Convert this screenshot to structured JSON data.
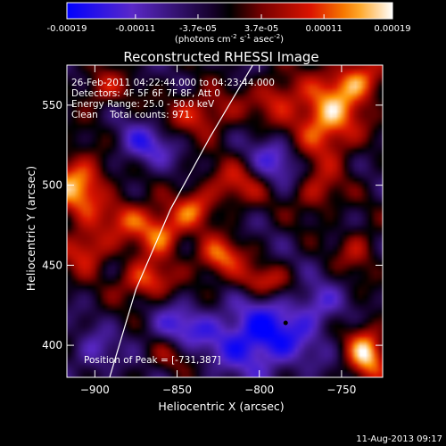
{
  "colorbar": {
    "ticks": [
      "-0.00019",
      "-0.00011",
      "-3.7e-05",
      "3.7e-05",
      "0.00011",
      "0.00019"
    ],
    "unit_prefix": "(photons cm",
    "unit_exp1": "-2",
    "unit_mid": " s",
    "unit_exp2": "-1",
    "unit_mid2": " asec",
    "unit_exp3": "-2",
    "unit_suffix": ")"
  },
  "annotations": {
    "line1": "26-Feb-2011 04:22:44.000 to 04:23:44.000",
    "line2": "Detectors: 4F 5F 6F 7F 8F, Att 0",
    "line3": "Energy Range: 25.0 - 50.0 keV",
    "line4": "Clean    Total counts: 971.",
    "peak": "Position of Peak = [-731,387]"
  },
  "footer": {
    "date": "11-Aug-2013 09:17"
  },
  "chart_data": {
    "type": "heatmap",
    "title": "Reconstructed RHESSI Image",
    "xlabel": "Heliocentric X (arcsec)",
    "ylabel": "Heliocentric Y (arcsec)",
    "xlim": [
      -917,
      -725
    ],
    "ylim": [
      380,
      575
    ],
    "xticks": [
      -900,
      -850,
      -800,
      -750
    ],
    "yticks": [
      400,
      450,
      500,
      550
    ],
    "xtick_labels": [
      "−900",
      "−850",
      "−800",
      "−750"
    ],
    "ytick_labels": [
      "400",
      "450",
      "500",
      "550"
    ],
    "color_range": [
      -0.00019,
      0.00019
    ],
    "peak": [
      -731,
      387
    ],
    "hot_regions": [
      {
        "x": -910,
        "y": 500,
        "sx": 18,
        "sy": 20,
        "a": 0.9
      },
      {
        "x": -905,
        "y": 460,
        "sx": 15,
        "sy": 14,
        "a": 0.7
      },
      {
        "x": -880,
        "y": 480,
        "sx": 14,
        "sy": 12,
        "a": 0.6
      },
      {
        "x": -860,
        "y": 470,
        "sx": 14,
        "sy": 14,
        "a": 0.85
      },
      {
        "x": -840,
        "y": 485,
        "sx": 12,
        "sy": 12,
        "a": 0.6
      },
      {
        "x": -870,
        "y": 440,
        "sx": 16,
        "sy": 12,
        "a": 0.75
      },
      {
        "x": -825,
        "y": 455,
        "sx": 14,
        "sy": 12,
        "a": 0.8
      },
      {
        "x": -815,
        "y": 500,
        "sx": 20,
        "sy": 14,
        "a": 0.55
      },
      {
        "x": -800,
        "y": 440,
        "sx": 18,
        "sy": 10,
        "a": 0.55
      },
      {
        "x": -835,
        "y": 545,
        "sx": 22,
        "sy": 14,
        "a": 0.6
      },
      {
        "x": -895,
        "y": 560,
        "sx": 15,
        "sy": 12,
        "a": 0.5
      },
      {
        "x": -790,
        "y": 555,
        "sx": 14,
        "sy": 14,
        "a": 0.55
      },
      {
        "x": -760,
        "y": 540,
        "sx": 20,
        "sy": 24,
        "a": 0.95
      },
      {
        "x": -740,
        "y": 565,
        "sx": 16,
        "sy": 14,
        "a": 0.8
      },
      {
        "x": -765,
        "y": 495,
        "sx": 14,
        "sy": 14,
        "a": 0.5
      },
      {
        "x": -740,
        "y": 460,
        "sx": 12,
        "sy": 14,
        "a": 0.45
      },
      {
        "x": -735,
        "y": 395,
        "sx": 12,
        "sy": 18,
        "a": 0.95
      },
      {
        "x": -855,
        "y": 395,
        "sx": 14,
        "sy": 12,
        "a": 0.4
      }
    ],
    "cold_regions": [
      {
        "x": -800,
        "y": 405,
        "sx": 30,
        "sy": 22,
        "a": 0.9
      },
      {
        "x": -850,
        "y": 410,
        "sx": 18,
        "sy": 14,
        "a": 0.55
      },
      {
        "x": -765,
        "y": 425,
        "sx": 14,
        "sy": 14,
        "a": 0.45
      },
      {
        "x": -870,
        "y": 525,
        "sx": 18,
        "sy": 14,
        "a": 0.55
      },
      {
        "x": -790,
        "y": 515,
        "sx": 16,
        "sy": 16,
        "a": 0.55
      },
      {
        "x": -900,
        "y": 395,
        "sx": 14,
        "sy": 14,
        "a": 0.4
      }
    ],
    "limb_arc": [
      [
        -891,
        380
      ],
      [
        -875,
        435
      ],
      [
        -854,
        485
      ],
      [
        -830,
        530
      ],
      [
        -804,
        575
      ]
    ],
    "colors": {
      "neg_min": "#0000ff",
      "mid": "#000000",
      "pos_mid": "#c80000",
      "pos_hi": "#ff8000",
      "pos_max": "#ffffff"
    }
  }
}
